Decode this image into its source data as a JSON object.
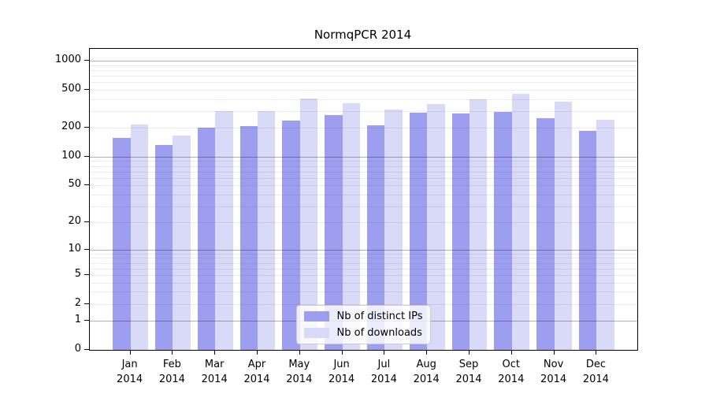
{
  "title": "NormqPCR 2014",
  "colors": {
    "distinct_ips": "#9e9ef0",
    "downloads": "#d9d9f8",
    "grid_minor": "rgba(0,0,0,0.075)",
    "grid_major": "rgba(0,0,0,0.30)",
    "spine": "#000000",
    "legend_border": "#cccccc"
  },
  "chart_data": {
    "type": "bar",
    "title": "NormqPCR 2014",
    "categories": [
      "Jan 2014",
      "Feb 2014",
      "Mar 2014",
      "Apr 2014",
      "May 2014",
      "Jun 2014",
      "Jul 2014",
      "Aug 2014",
      "Sep 2014",
      "Oct 2014",
      "Nov 2014",
      "Dec 2014"
    ],
    "series": [
      {
        "name": "Nb of distinct IPs",
        "color": "#9e9ef0",
        "values": [
          158,
          132,
          202,
          208,
          238,
          270,
          212,
          288,
          282,
          296,
          253,
          187
        ]
      },
      {
        "name": "Nb of downloads",
        "color": "#d9d9f8",
        "values": [
          215,
          167,
          298,
          297,
          408,
          362,
          310,
          358,
          400,
          452,
          376,
          245
        ]
      }
    ],
    "xlabel": "",
    "ylabel": "",
    "yscale": "log1p",
    "ylim": [
      0,
      1330
    ],
    "y_ticks": [
      0,
      1,
      2,
      5,
      10,
      20,
      50,
      100,
      200,
      500,
      1000
    ],
    "grid": true,
    "grid_major_values": [
      1,
      10,
      100,
      1000
    ],
    "grid_minor_values": [
      2,
      3,
      4,
      5,
      6,
      7,
      8,
      9,
      20,
      30,
      40,
      50,
      60,
      70,
      80,
      90,
      200,
      300,
      400,
      500,
      600,
      700,
      800,
      900
    ],
    "legend_position": "lower center"
  }
}
